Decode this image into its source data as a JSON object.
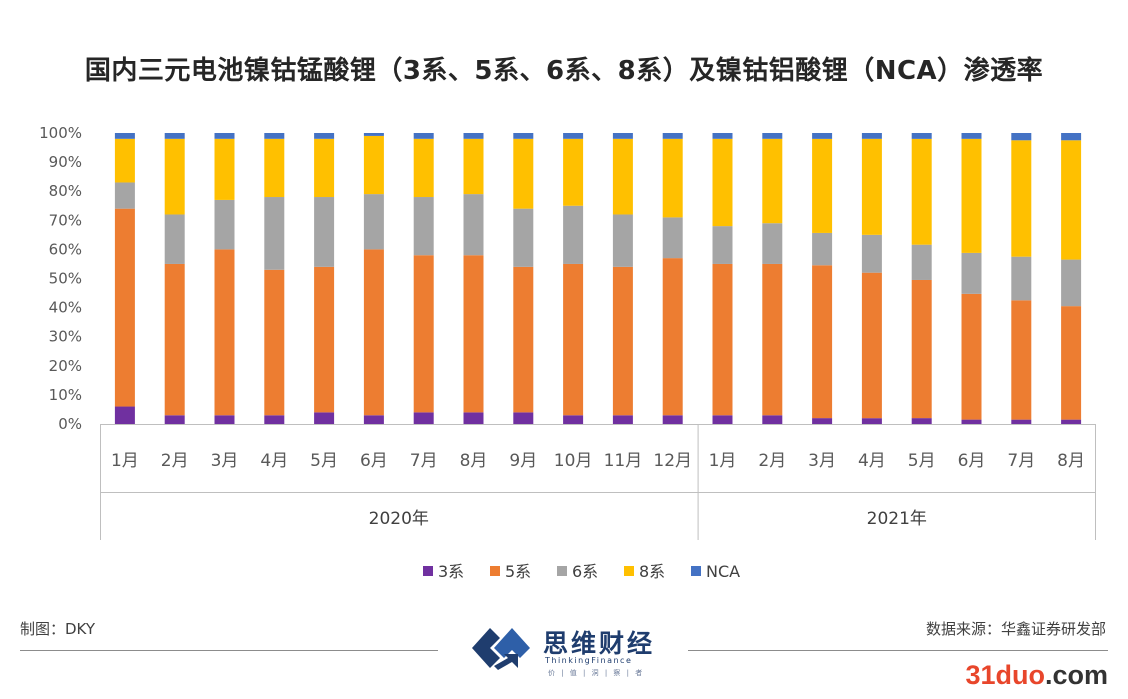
{
  "chart_data": {
    "type": "bar",
    "stacked": true,
    "title": "国内三元电池镍钴锰酸锂（3系、5系、6系、8系）及镍钴铝酸锂（NCA）渗透率",
    "categories": [
      "1月",
      "2月",
      "3月",
      "4月",
      "5月",
      "6月",
      "7月",
      "8月",
      "9月",
      "10月",
      "11月",
      "12月",
      "1月",
      "2月",
      "3月",
      "4月",
      "5月",
      "6月",
      "7月",
      "8月"
    ],
    "groups": [
      {
        "label": "2020年",
        "start": 0,
        "end": 11
      },
      {
        "label": "2021年",
        "start": 12,
        "end": 19
      }
    ],
    "ylim": [
      0,
      100
    ],
    "yticks": [
      "0%",
      "10%",
      "20%",
      "30%",
      "40%",
      "50%",
      "60%",
      "70%",
      "80%",
      "90%",
      "100%"
    ],
    "legend_position": "bottom",
    "series": [
      {
        "name": "3系",
        "color": "#7030A0",
        "values": [
          6,
          3,
          3,
          3,
          4,
          3,
          4,
          4,
          4,
          3,
          3,
          3,
          3,
          3,
          2,
          2,
          2,
          1.5,
          1.5,
          1.5
        ]
      },
      {
        "name": "5系",
        "color": "#ED7D31",
        "values": [
          68,
          52,
          57,
          50,
          50,
          57,
          54,
          54,
          50,
          52,
          51,
          54,
          52,
          52,
          52,
          50,
          47,
          43,
          41,
          39
        ]
      },
      {
        "name": "6系",
        "color": "#A5A5A5",
        "values": [
          9,
          17,
          17,
          25,
          24,
          19,
          20,
          21,
          20,
          20,
          18,
          14,
          13,
          14,
          11,
          13,
          12,
          14,
          15,
          16
        ]
      },
      {
        "name": "8系",
        "color": "#FFC000",
        "values": [
          15,
          26,
          21,
          20,
          20,
          20,
          20,
          19,
          24,
          23,
          26,
          27,
          30,
          29,
          32,
          33,
          36,
          39,
          40,
          41
        ]
      },
      {
        "name": "NCA",
        "color": "#4472C4",
        "values": [
          2,
          2,
          2,
          2,
          2,
          1,
          2,
          2,
          2,
          2,
          2,
          2,
          2,
          2,
          2,
          2,
          2,
          2,
          2.5,
          2.5
        ]
      }
    ]
  },
  "footer": {
    "left_text": "制图：DKY",
    "right_text": "数据来源：华鑫证券研发部"
  },
  "logo": {
    "name": "思维财经",
    "subtitle": "ThinkingFinance",
    "tagline": "价 | 值 | 洞 | 察 | 者"
  },
  "watermark": {
    "accent": "31duo",
    "rest": ".com"
  }
}
